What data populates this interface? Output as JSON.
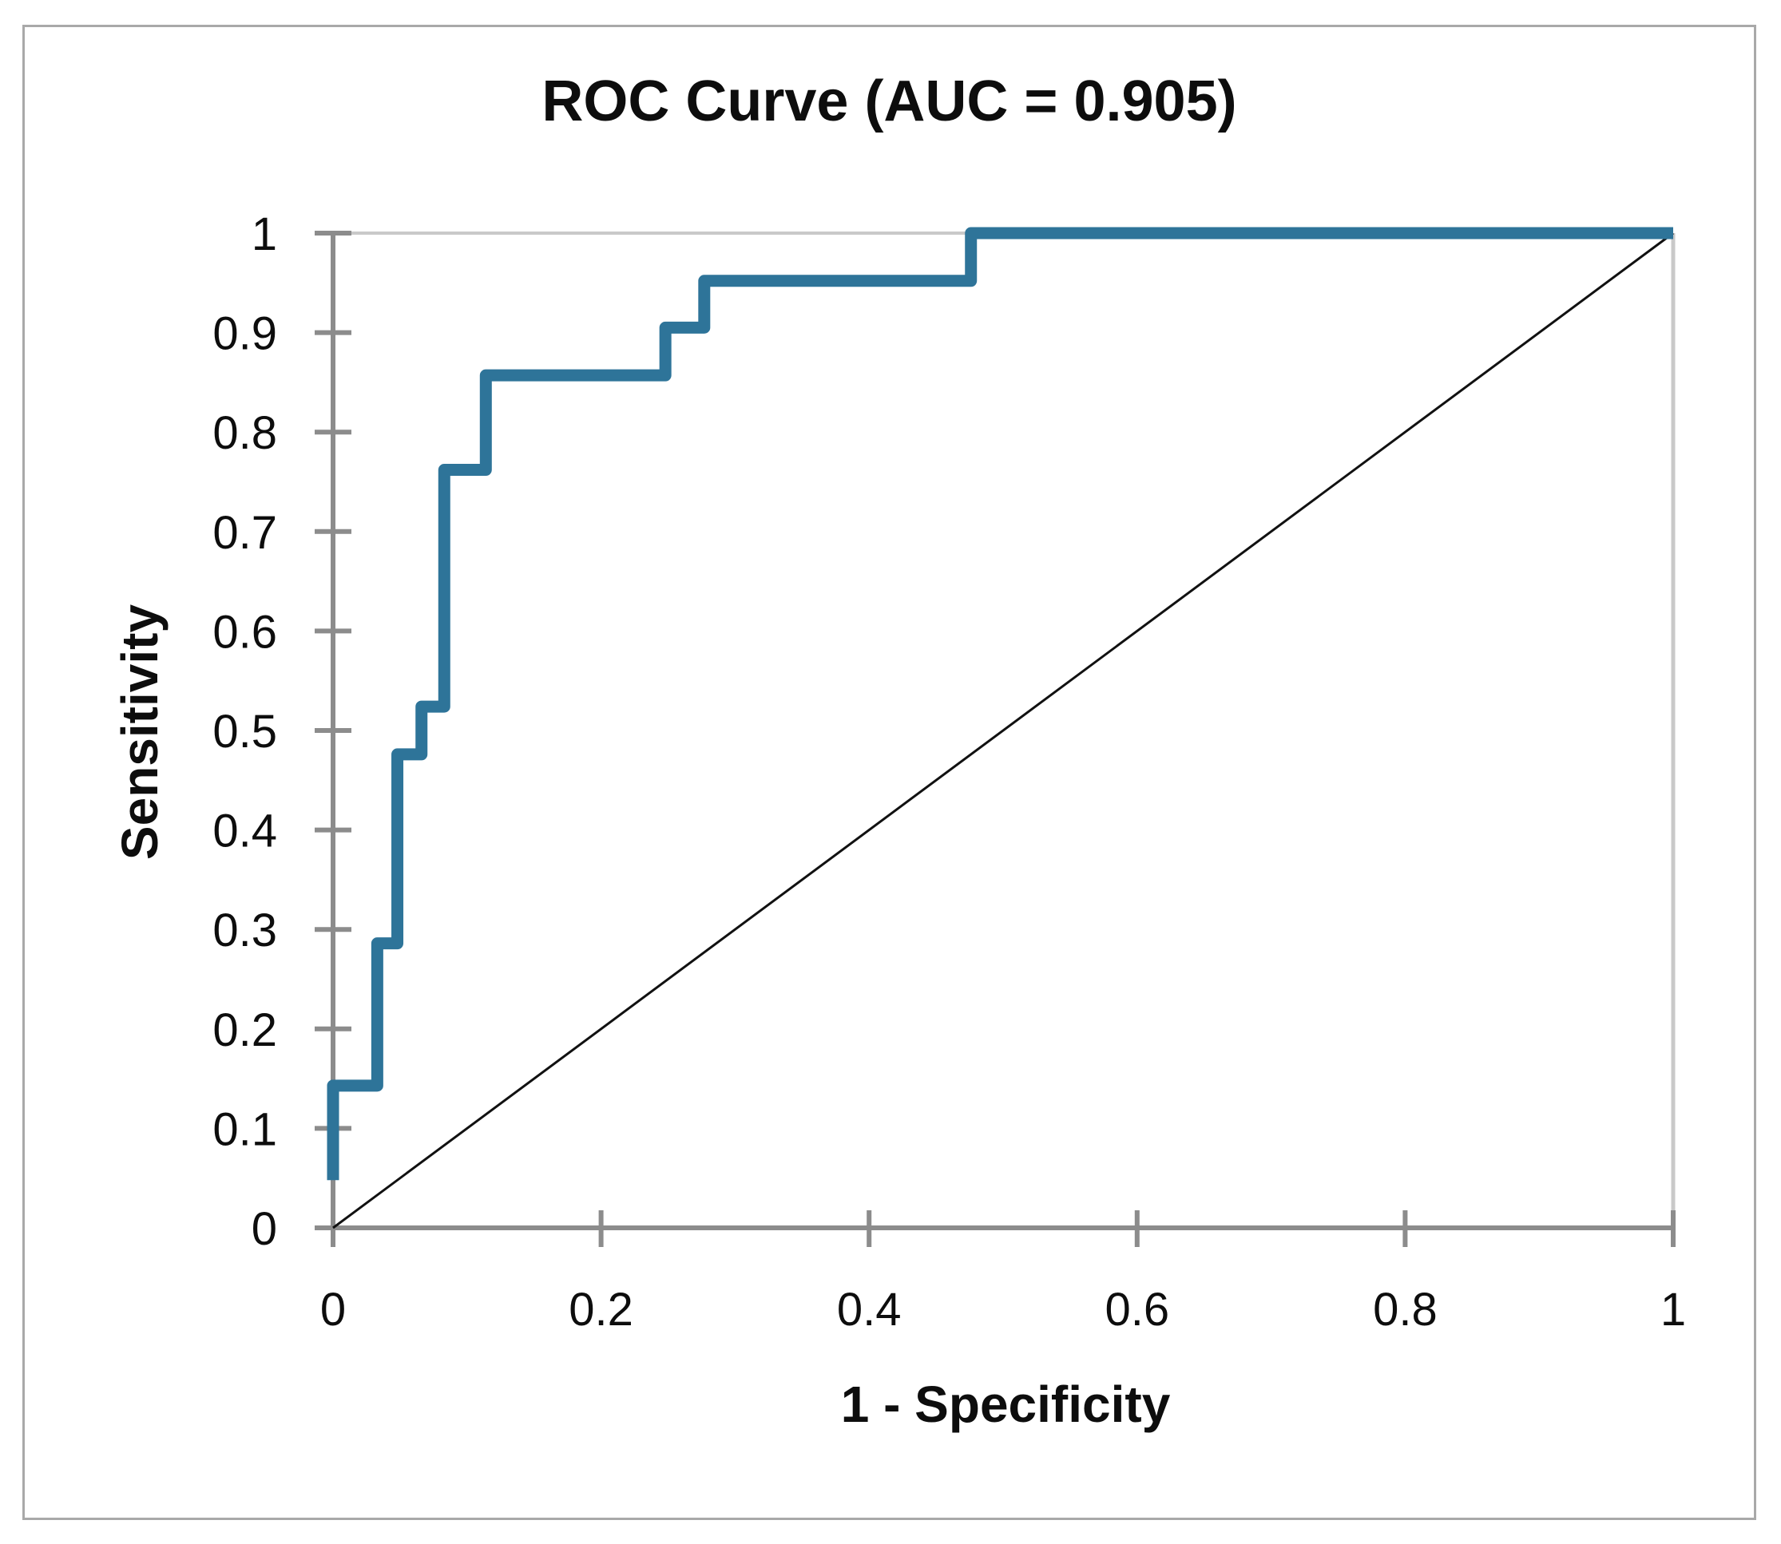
{
  "figure": {
    "title": "ROC Curve (AUC = 0.905)",
    "x_axis_title": "1 - Specificity",
    "y_axis_title": "Sensitivity"
  },
  "chart_data": {
    "type": "line",
    "subtype": "roc-step-curve",
    "title": "ROC Curve (AUC = 0.905)",
    "auc": 0.905,
    "xlabel": "1 - Specificity",
    "ylabel": "Sensitivity",
    "xlim": [
      0,
      1
    ],
    "ylim": [
      0,
      1
    ],
    "grid": "top-and-right-plot-border-only",
    "legend_position": "none",
    "x_ticks": [
      {
        "value": 0,
        "label": "0"
      },
      {
        "value": 0.2,
        "label": "0.2"
      },
      {
        "value": 0.4,
        "label": "0.4"
      },
      {
        "value": 0.6,
        "label": "0.6"
      },
      {
        "value": 0.8,
        "label": "0.8"
      },
      {
        "value": 1,
        "label": "1"
      }
    ],
    "y_ticks": [
      {
        "value": 0,
        "label": "0"
      },
      {
        "value": 0.1,
        "label": "0.1"
      },
      {
        "value": 0.2,
        "label": "0.2"
      },
      {
        "value": 0.3,
        "label": "0.3"
      },
      {
        "value": 0.4,
        "label": "0.4"
      },
      {
        "value": 0.5,
        "label": "0.5"
      },
      {
        "value": 0.6,
        "label": "0.6"
      },
      {
        "value": 0.7,
        "label": "0.7"
      },
      {
        "value": 0.8,
        "label": "0.8"
      },
      {
        "value": 0.9,
        "label": "0.9"
      },
      {
        "value": 1,
        "label": "1"
      }
    ],
    "series": [
      {
        "name": "ROC curve",
        "color": "#2e7499",
        "stroke_width": 15,
        "points": [
          [
            0,
            0.048
          ],
          [
            0,
            0.143
          ],
          [
            0.033,
            0.143
          ],
          [
            0.033,
            0.286
          ],
          [
            0.048,
            0.286
          ],
          [
            0.048,
            0.476
          ],
          [
            0.066,
            0.476
          ],
          [
            0.066,
            0.524
          ],
          [
            0.083,
            0.524
          ],
          [
            0.083,
            0.762
          ],
          [
            0.114,
            0.762
          ],
          [
            0.114,
            0.857
          ],
          [
            0.248,
            0.857
          ],
          [
            0.248,
            0.905
          ],
          [
            0.277,
            0.905
          ],
          [
            0.277,
            0.952
          ],
          [
            0.476,
            0.952
          ],
          [
            0.476,
            1
          ],
          [
            1,
            1
          ]
        ]
      },
      {
        "name": "chance diagonal",
        "color": "#111111",
        "stroke_width": 3,
        "points": [
          [
            0,
            0
          ],
          [
            1,
            1
          ]
        ]
      }
    ],
    "style": {
      "axis_color": "#8c8c8c",
      "tick_label_color": "#0d0d0d",
      "top_gridline_color": "#c9c9c9",
      "right_spine_color": "#c9c9c9",
      "outer_border_color": "#a9a9a9",
      "background": "#ffffff"
    }
  }
}
